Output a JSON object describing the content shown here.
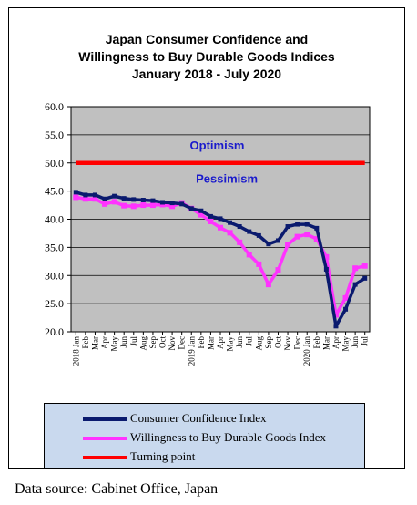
{
  "title": {
    "line1": "Japan Consumer Confidence and",
    "line2": "Willingness to Buy Durable Goods Indices",
    "line3": "January 2018 - July 2020"
  },
  "source": "Data source: Cabinet Office, Japan",
  "colors": {
    "plot_bg": "#c0c0c0",
    "consumer_confidence": "#0a1a6e",
    "durable_goods": "#ff33ff",
    "turning_point": "#ff0000",
    "annotation_text": "#1a1acc",
    "legend_bg": "#c9d9ee"
  },
  "chart_data": {
    "type": "line",
    "x": [
      "2018 Jan",
      "Feb",
      "Mar",
      "Apr",
      "May",
      "Jun",
      "Jul",
      "Aug",
      "Sep",
      "Oct",
      "Nov",
      "Dec",
      "2019 Jan",
      "Feb",
      "Mar",
      "Apr",
      "May",
      "Jun",
      "Jul",
      "Aug",
      "Sep",
      "Oct",
      "Nov",
      "Dec",
      "2020 Jan",
      "Feb",
      "Mar",
      "Apr",
      "May",
      "Jun",
      "Jul"
    ],
    "ylim": [
      20.0,
      60.0
    ],
    "yticks": [
      "20.0",
      "25.0",
      "30.0",
      "35.0",
      "40.0",
      "45.0",
      "50.0",
      "55.0",
      "60.0"
    ],
    "grid": true,
    "legend_position": "bottom",
    "series": [
      {
        "name": "Consumer Confidence Index",
        "key": "consumer_confidence",
        "values": [
          44.8,
          44.3,
          44.3,
          43.6,
          44.1,
          43.7,
          43.5,
          43.4,
          43.3,
          43.0,
          42.9,
          42.7,
          41.9,
          41.5,
          40.5,
          40.1,
          39.4,
          38.7,
          37.8,
          37.1,
          35.6,
          36.2,
          38.7,
          39.1,
          39.1,
          38.4,
          31.1,
          21.0,
          24.0,
          28.4,
          29.5
        ]
      },
      {
        "name": "Willingness to Buy Durable Goods Index",
        "key": "durable_goods",
        "values": [
          43.9,
          43.6,
          43.6,
          42.7,
          43.1,
          42.4,
          42.3,
          42.5,
          42.5,
          42.6,
          42.3,
          42.9,
          41.9,
          40.8,
          39.6,
          38.5,
          37.6,
          35.9,
          33.7,
          32.0,
          28.4,
          31.0,
          35.5,
          36.9,
          37.3,
          36.5,
          33.3,
          23.0,
          26.0,
          31.3,
          31.7
        ]
      },
      {
        "name": "Turning point",
        "key": "turning_point",
        "values": [
          50,
          50,
          50,
          50,
          50,
          50,
          50,
          50,
          50,
          50,
          50,
          50,
          50,
          50,
          50,
          50,
          50,
          50,
          50,
          50,
          50,
          50,
          50,
          50,
          50,
          50,
          50,
          50,
          50,
          50,
          50
        ]
      }
    ],
    "annotations": [
      {
        "text": "Optimism",
        "x": "Oct",
        "y": 53.2
      },
      {
        "text": "Pessimism",
        "x": "Nov",
        "y": 47.3
      }
    ]
  }
}
